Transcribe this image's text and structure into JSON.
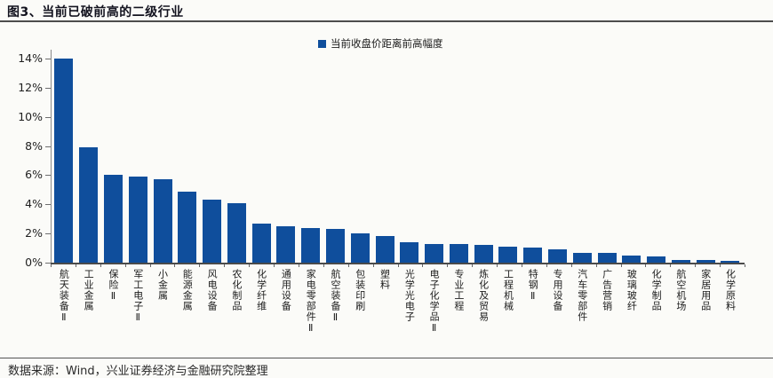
{
  "header": {
    "title": "图3、当前已破前高的二级行业"
  },
  "legend": {
    "label": "当前收盘价距离前高幅度"
  },
  "footer": {
    "source": "数据来源：Wind，兴业证券经济与金融研究院整理"
  },
  "colors": {
    "bar": "#0f4e9c",
    "axis": "#4a4a4a",
    "text": "#1c1c1c"
  },
  "chart_data": {
    "type": "bar",
    "title": "当前已破前高的二级行业",
    "legend_entries": [
      "当前收盘价距离前高幅度"
    ],
    "legend_position": "top-center",
    "grid": false,
    "xlabel": "",
    "ylabel": "",
    "ylim": [
      0,
      14
    ],
    "yticks": [
      0,
      2,
      4,
      6,
      8,
      10,
      12,
      14
    ],
    "ytick_format": "percent",
    "categories": [
      "航天装备Ⅱ",
      "工业金属",
      "保险Ⅱ",
      "军工电子Ⅱ",
      "小金属",
      "能源金属",
      "风电设备",
      "农化制品",
      "化学纤维",
      "通用设备",
      "家电零部件Ⅱ",
      "航空装备Ⅱ",
      "包装印刷",
      "塑料",
      "光学光电子",
      "电子化学品Ⅱ",
      "专业工程",
      "炼化及贸易",
      "工程机械",
      "特钢Ⅱ",
      "专用设备",
      "汽车零部件",
      "广告营销",
      "玻璃玻纤",
      "化学制品",
      "航空机场",
      "家居用品",
      "化学原料"
    ],
    "values": [
      14.0,
      7.9,
      6.0,
      5.9,
      5.7,
      4.9,
      4.3,
      4.1,
      2.7,
      2.5,
      2.4,
      2.3,
      2.0,
      1.8,
      1.4,
      1.3,
      1.25,
      1.2,
      1.1,
      1.05,
      0.9,
      0.7,
      0.65,
      0.5,
      0.45,
      0.2,
      0.18,
      0.15
    ]
  }
}
